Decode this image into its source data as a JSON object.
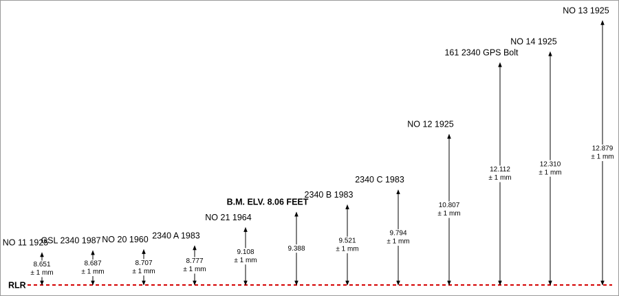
{
  "baseline": "RLR",
  "benchmarks": [
    {
      "label": "NO 11 1925",
      "value": "8.651",
      "tolerance": "± 1 mm"
    },
    {
      "label": "GSL 2340 1987",
      "value": "8.687",
      "tolerance": "± 1 mm"
    },
    {
      "label": "NO 20 1960",
      "value": "8.707",
      "tolerance": "± 1 mm"
    },
    {
      "label": "2340 A 1983",
      "value": "8.777",
      "tolerance": "± 1 mm"
    },
    {
      "label": "NO 21 1964",
      "value": "9.108",
      "tolerance": "± 1 mm"
    },
    {
      "label": "B.M. ELV. 8.06 FEET",
      "value": "9.388"
    },
    {
      "label": "2340 B 1983",
      "value": "9.521",
      "tolerance": "± 1 mm"
    },
    {
      "label": "2340 C 1983",
      "value": "9.794",
      "tolerance": "± 1 mm"
    },
    {
      "label": "NO 12 1925",
      "value": "10.807",
      "tolerance": "± 1 mm"
    },
    {
      "label": "161 2340 GPS Bolt",
      "value": "12.112",
      "tolerance": "± 1 mm"
    },
    {
      "label": "NO 14 1925",
      "value": "12.310",
      "tolerance": "± 1 mm"
    },
    {
      "label": "NO 13 1925",
      "value": "12.879",
      "tolerance": "± 1 mm"
    }
  ]
}
